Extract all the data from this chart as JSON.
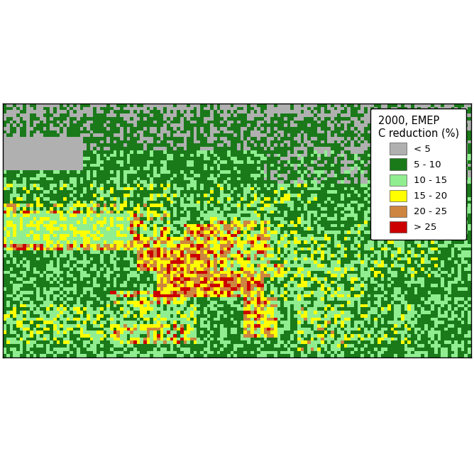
{
  "legend_title": "2000, EMEP\nC reduction (%)",
  "legend_labels": [
    "< 5",
    "5 - 10",
    "10 - 15",
    "15 - 20",
    "20 - 25",
    "> 25"
  ],
  "legend_colors": [
    "#b0b0b0",
    "#1a7a1a",
    "#90ee90",
    "#ffff00",
    "#cd853f",
    "#cc0000"
  ],
  "background_color": "#ffffff",
  "figsize": [
    6.68,
    6.5
  ],
  "dpi": 100,
  "xlim": [
    -25,
    45
  ],
  "ylim": [
    34,
    72
  ],
  "cell_size": 0.5
}
